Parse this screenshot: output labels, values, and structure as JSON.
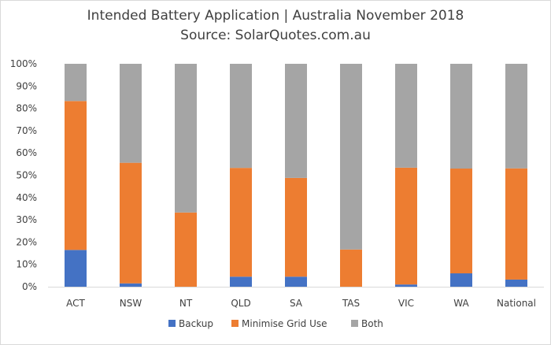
{
  "chart_data": {
    "type": "bar",
    "stacked": true,
    "title": "Intended Battery Application | Australia November 2018",
    "subtitle": "Source: SolarQuotes.com.au",
    "categories": [
      "ACT",
      "NSW",
      "NT",
      "QLD",
      "SA",
      "TAS",
      "VIC",
      "WA",
      "National"
    ],
    "series": [
      {
        "name": "Backup",
        "color": "#4472c4",
        "values": [
          16.5,
          1.5,
          0,
          4.5,
          4.5,
          0,
          1.0,
          6.0,
          3.2
        ]
      },
      {
        "name": "Minimise Grid Use",
        "color": "#ed7d31",
        "values": [
          66.8,
          54.1,
          33.3,
          48.8,
          44.3,
          16.7,
          52.4,
          47.0,
          49.9
        ]
      },
      {
        "name": "Both",
        "color": "#a5a5a5",
        "values": [
          16.7,
          44.4,
          66.7,
          46.7,
          51.2,
          83.3,
          46.6,
          47.0,
          46.9
        ]
      }
    ],
    "yticks": [
      "0%",
      "10%",
      "20%",
      "30%",
      "40%",
      "50%",
      "60%",
      "70%",
      "80%",
      "90%",
      "100%"
    ],
    "ylim": [
      0,
      100
    ],
    "legend_position": "bottom",
    "grid": false
  }
}
